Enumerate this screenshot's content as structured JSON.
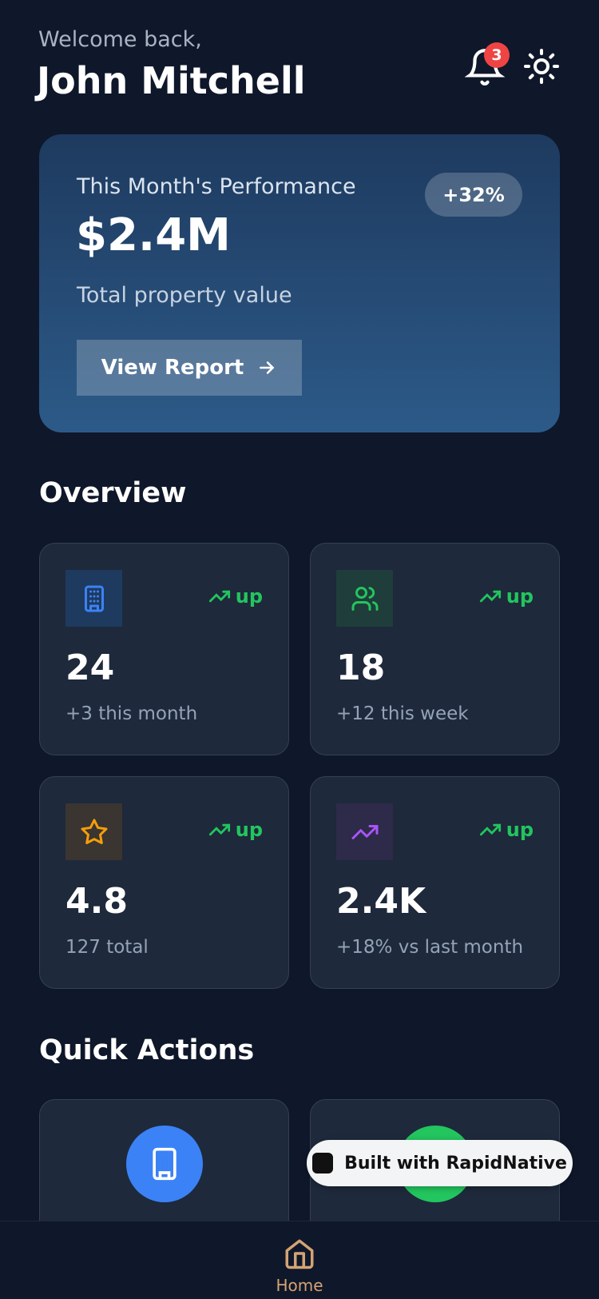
{
  "header": {
    "greeting": "Welcome back,",
    "name": "John Mitchell",
    "notification_count": 3
  },
  "performance": {
    "title": "This Month's Performance",
    "value": "$2.4M",
    "subtitle": "Total property value",
    "change": "+32%",
    "button": "View Report"
  },
  "overview": {
    "title": "Overview",
    "stats": [
      {
        "trend": "up",
        "value": "24",
        "note": "+3 this month"
      },
      {
        "trend": "up",
        "value": "18",
        "note": "+12 this week"
      },
      {
        "trend": "up",
        "value": "4.8",
        "note": "127 total"
      },
      {
        "trend": "up",
        "value": "2.4K",
        "note": "+18% vs last month"
      }
    ]
  },
  "quick_actions": {
    "title": "Quick Actions"
  },
  "badge": "Built with RapidNative",
  "nav": {
    "home": "Home"
  }
}
